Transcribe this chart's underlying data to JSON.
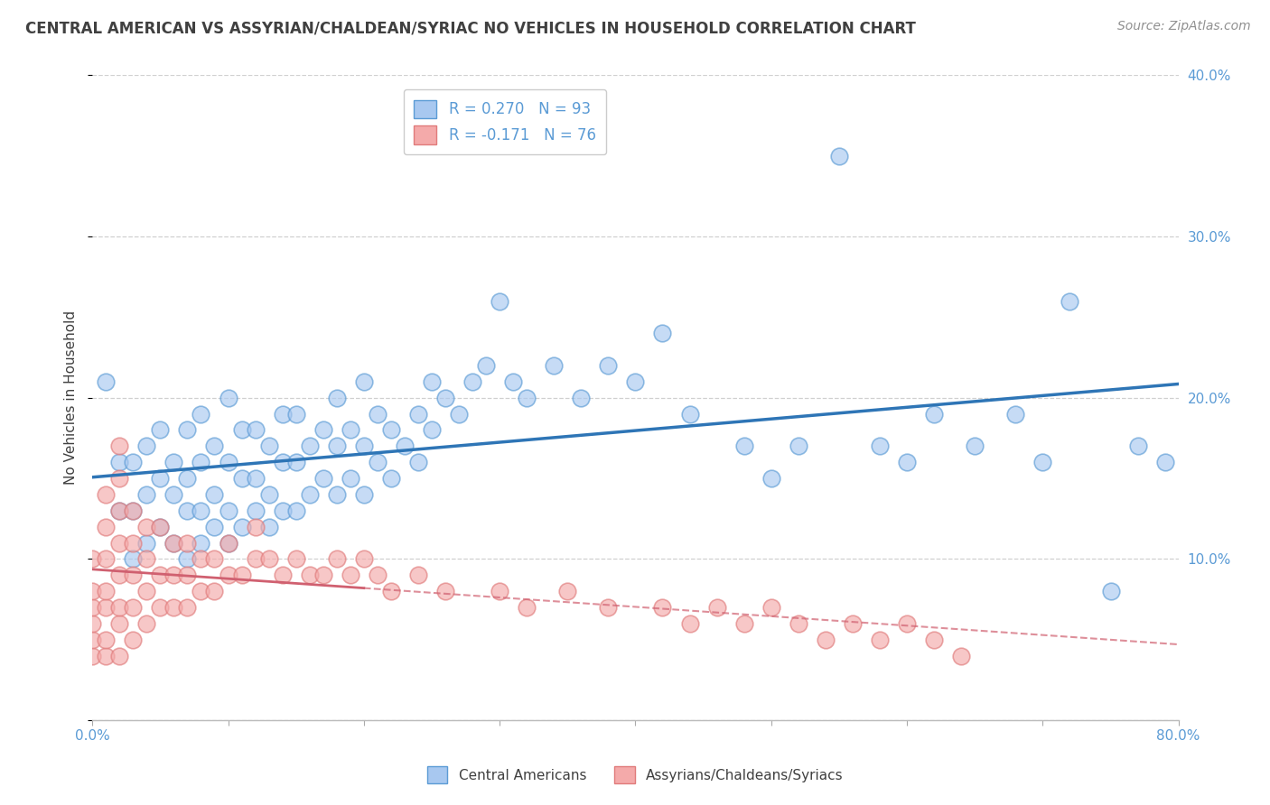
{
  "title": "CENTRAL AMERICAN VS ASSYRIAN/CHALDEAN/SYRIAC NO VEHICLES IN HOUSEHOLD CORRELATION CHART",
  "source": "Source: ZipAtlas.com",
  "ylabel": "No Vehicles in Household",
  "xmin": 0.0,
  "xmax": 0.8,
  "ymin": 0.0,
  "ymax": 0.4,
  "yticks": [
    0.0,
    0.1,
    0.2,
    0.3,
    0.4
  ],
  "ytick_labels": [
    "",
    "10.0%",
    "20.0%",
    "30.0%",
    "40.0%"
  ],
  "legend_blue_r": "R = 0.270",
  "legend_blue_n": "N = 93",
  "legend_pink_r": "R = -0.171",
  "legend_pink_n": "N = 76",
  "blue_color": "#A8C8F0",
  "blue_edge": "#5B9BD5",
  "pink_color": "#F4AAAA",
  "pink_edge": "#E07B7B",
  "trend_blue": "#2E75B6",
  "trend_pink": "#D06070",
  "grid_color": "#D0D0D0",
  "background": "#FFFFFF",
  "title_color": "#404040",
  "source_color": "#909090",
  "axis_label_color": "#5B9BD5",
  "blue_x": [
    0.01,
    0.02,
    0.02,
    0.03,
    0.03,
    0.03,
    0.04,
    0.04,
    0.04,
    0.05,
    0.05,
    0.05,
    0.06,
    0.06,
    0.06,
    0.07,
    0.07,
    0.07,
    0.07,
    0.08,
    0.08,
    0.08,
    0.08,
    0.09,
    0.09,
    0.09,
    0.1,
    0.1,
    0.1,
    0.1,
    0.11,
    0.11,
    0.11,
    0.12,
    0.12,
    0.12,
    0.13,
    0.13,
    0.13,
    0.14,
    0.14,
    0.14,
    0.15,
    0.15,
    0.15,
    0.16,
    0.16,
    0.17,
    0.17,
    0.18,
    0.18,
    0.18,
    0.19,
    0.19,
    0.2,
    0.2,
    0.2,
    0.21,
    0.21,
    0.22,
    0.22,
    0.23,
    0.24,
    0.24,
    0.25,
    0.25,
    0.26,
    0.27,
    0.28,
    0.29,
    0.3,
    0.31,
    0.32,
    0.34,
    0.36,
    0.38,
    0.4,
    0.42,
    0.44,
    0.48,
    0.5,
    0.52,
    0.55,
    0.58,
    0.6,
    0.62,
    0.65,
    0.68,
    0.7,
    0.72,
    0.75,
    0.77,
    0.79
  ],
  "blue_y": [
    0.21,
    0.13,
    0.16,
    0.1,
    0.13,
    0.16,
    0.11,
    0.14,
    0.17,
    0.12,
    0.15,
    0.18,
    0.11,
    0.14,
    0.16,
    0.1,
    0.13,
    0.15,
    0.18,
    0.11,
    0.13,
    0.16,
    0.19,
    0.12,
    0.14,
    0.17,
    0.11,
    0.13,
    0.16,
    0.2,
    0.12,
    0.15,
    0.18,
    0.13,
    0.15,
    0.18,
    0.12,
    0.14,
    0.17,
    0.13,
    0.16,
    0.19,
    0.13,
    0.16,
    0.19,
    0.14,
    0.17,
    0.15,
    0.18,
    0.14,
    0.17,
    0.2,
    0.15,
    0.18,
    0.14,
    0.17,
    0.21,
    0.16,
    0.19,
    0.15,
    0.18,
    0.17,
    0.16,
    0.19,
    0.18,
    0.21,
    0.2,
    0.19,
    0.21,
    0.22,
    0.26,
    0.21,
    0.2,
    0.22,
    0.2,
    0.22,
    0.21,
    0.24,
    0.19,
    0.17,
    0.15,
    0.17,
    0.35,
    0.17,
    0.16,
    0.19,
    0.17,
    0.19,
    0.16,
    0.26,
    0.08,
    0.17,
    0.16
  ],
  "pink_x": [
    0.0,
    0.0,
    0.0,
    0.0,
    0.0,
    0.0,
    0.01,
    0.01,
    0.01,
    0.01,
    0.01,
    0.01,
    0.01,
    0.02,
    0.02,
    0.02,
    0.02,
    0.02,
    0.02,
    0.02,
    0.02,
    0.03,
    0.03,
    0.03,
    0.03,
    0.03,
    0.04,
    0.04,
    0.04,
    0.04,
    0.05,
    0.05,
    0.05,
    0.06,
    0.06,
    0.06,
    0.07,
    0.07,
    0.07,
    0.08,
    0.08,
    0.09,
    0.09,
    0.1,
    0.1,
    0.11,
    0.12,
    0.12,
    0.13,
    0.14,
    0.15,
    0.16,
    0.17,
    0.18,
    0.19,
    0.2,
    0.21,
    0.22,
    0.24,
    0.26,
    0.3,
    0.32,
    0.35,
    0.38,
    0.42,
    0.44,
    0.46,
    0.48,
    0.5,
    0.52,
    0.54,
    0.56,
    0.58,
    0.6,
    0.62,
    0.64
  ],
  "pink_y": [
    0.04,
    0.05,
    0.06,
    0.07,
    0.08,
    0.1,
    0.04,
    0.05,
    0.07,
    0.08,
    0.1,
    0.12,
    0.14,
    0.04,
    0.06,
    0.07,
    0.09,
    0.11,
    0.13,
    0.15,
    0.17,
    0.05,
    0.07,
    0.09,
    0.11,
    0.13,
    0.06,
    0.08,
    0.1,
    0.12,
    0.07,
    0.09,
    0.12,
    0.07,
    0.09,
    0.11,
    0.07,
    0.09,
    0.11,
    0.08,
    0.1,
    0.08,
    0.1,
    0.09,
    0.11,
    0.09,
    0.1,
    0.12,
    0.1,
    0.09,
    0.1,
    0.09,
    0.09,
    0.1,
    0.09,
    0.1,
    0.09,
    0.08,
    0.09,
    0.08,
    0.08,
    0.07,
    0.08,
    0.07,
    0.07,
    0.06,
    0.07,
    0.06,
    0.07,
    0.06,
    0.05,
    0.06,
    0.05,
    0.06,
    0.05,
    0.04
  ]
}
